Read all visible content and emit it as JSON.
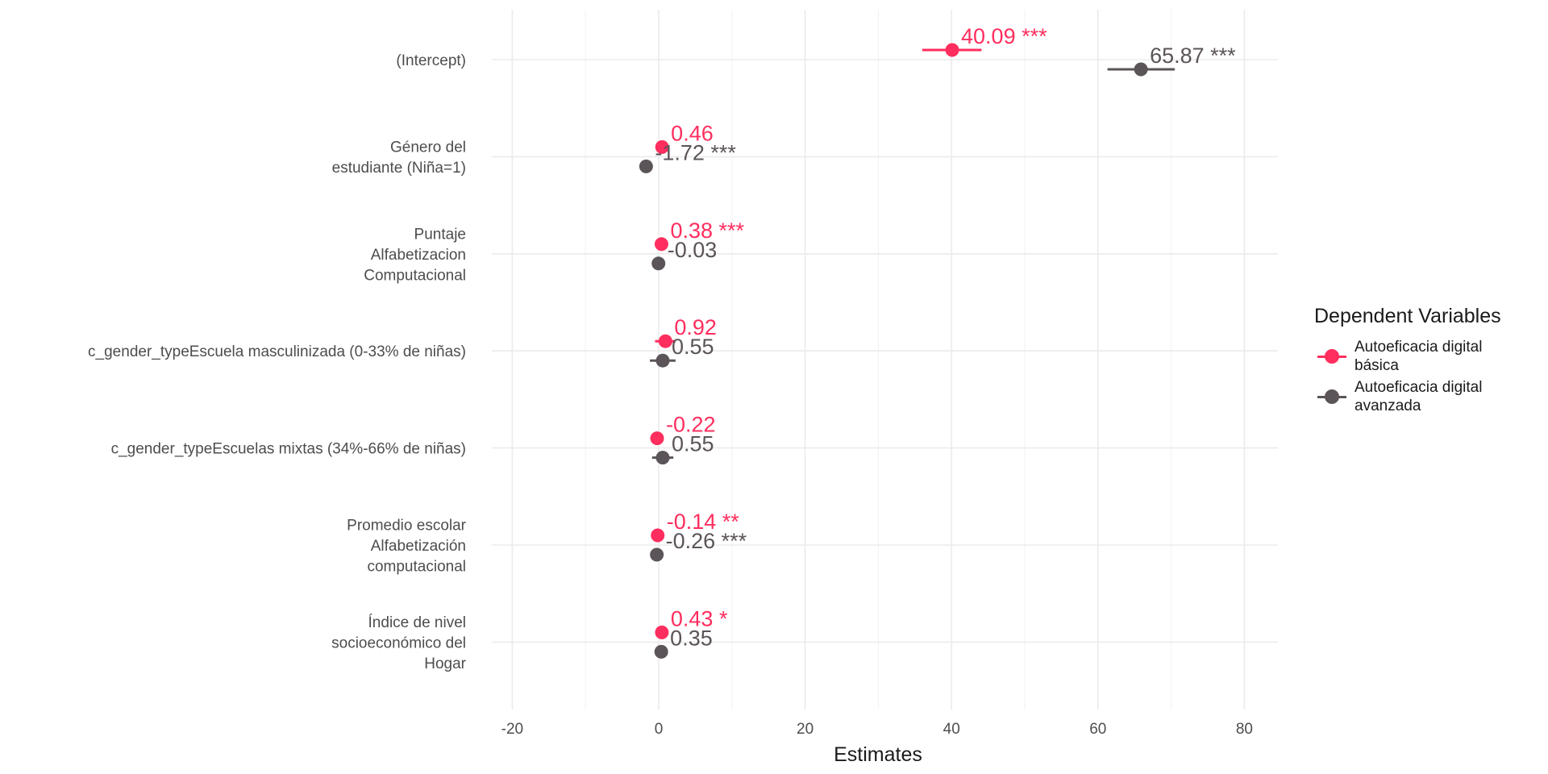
{
  "chart_data": {
    "type": "scatter",
    "subtype": "coefficient-plot",
    "xlabel": "Estimates",
    "xlim": [
      -27,
      85
    ],
    "xticks": [
      -20,
      0,
      20,
      40,
      60,
      80
    ],
    "grid": true,
    "legend": {
      "title": "Dependent Variables",
      "placement": "right"
    },
    "categories": [
      "(Intercept)",
      "Género del\nestudiante (Niña=1)",
      "Puntaje\nAlfabetizacion\nComputacional",
      "c_gender_typeEscuela masculinizada (0-33% de niñas)",
      "c_gender_typeEscuelas mixtas (34%-66% de niñas)",
      "Promedio escolar\nAlfabetización\ncomputacional",
      "Índice de nivel\nsocioeconómico del\nHogar"
    ],
    "series": [
      {
        "name": "Autoeficacia digital\nbásica",
        "color": "#ff2e5e",
        "values": [
          40.09,
          0.46,
          0.38,
          0.92,
          -0.22,
          -0.14,
          0.43
        ],
        "ci": [
          [
            36.0,
            44.1
          ],
          [
            0.1,
            0.8
          ],
          [
            0.0,
            0.8
          ],
          [
            -0.5,
            2.3
          ],
          [
            -1.0,
            0.6
          ],
          [
            -0.4,
            0.1
          ],
          [
            0.0,
            0.9
          ]
        ],
        "labels": [
          "40.09 ***",
          "0.46",
          "0.38 ***",
          "0.92",
          "-0.22",
          "-0.14 **",
          "0.43 *"
        ]
      },
      {
        "name": "Autoeficacia digital\navanzada",
        "color": "#5b5458",
        "values": [
          65.87,
          -1.72,
          -0.03,
          0.55,
          0.55,
          -0.26,
          0.35
        ],
        "ci": [
          [
            61.3,
            70.5
          ],
          [
            -2.2,
            -1.2
          ],
          [
            -0.3,
            0.3
          ],
          [
            -1.2,
            2.3
          ],
          [
            -0.9,
            2.0
          ],
          [
            -0.6,
            0.1
          ],
          [
            0.0,
            0.7
          ]
        ],
        "labels": [
          "65.87 ***",
          "-1.72 ***",
          "-0.03",
          "0.55",
          "0.55",
          "-0.26 ***",
          "0.35"
        ]
      }
    ]
  }
}
